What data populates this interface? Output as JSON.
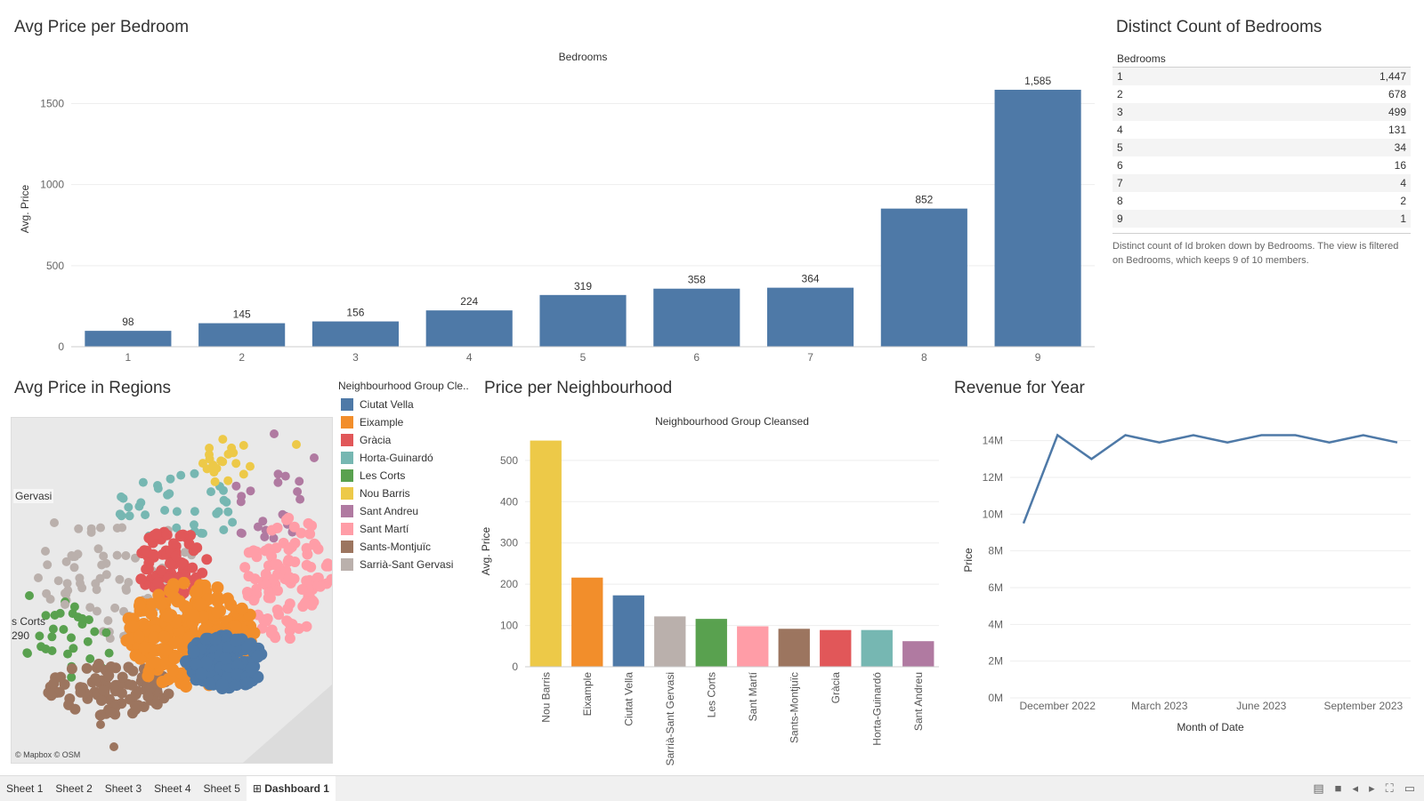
{
  "titles": {
    "bedroom_price": "Avg Price per Bedroom",
    "distinct_count": "Distinct Count of Bedrooms",
    "regions": "Avg Price in Regions",
    "neighbourhood": "Price per Neighbourhood",
    "revenue": "Revenue for Year"
  },
  "chart_data": [
    {
      "type": "bar",
      "title": "Avg Price per Bedroom",
      "header": "Bedrooms",
      "ylabel": "Avg. Price",
      "categories": [
        "1",
        "2",
        "3",
        "4",
        "5",
        "6",
        "7",
        "8",
        "9"
      ],
      "values": [
        98,
        145,
        156,
        224,
        319,
        358,
        364,
        852,
        1585
      ],
      "value_labels": [
        "98",
        "145",
        "156",
        "224",
        "319",
        "358",
        "364",
        "852",
        "1,585"
      ],
      "ylim": [
        0,
        1700
      ],
      "yticks": [
        0,
        500,
        1000,
        1500
      ],
      "color": "#4e79a7"
    },
    {
      "type": "table",
      "title": "Distinct Count of Bedrooms",
      "header": "Bedrooms",
      "rows": [
        {
          "bedrooms": "1",
          "count": "1,447"
        },
        {
          "bedrooms": "2",
          "count": "678"
        },
        {
          "bedrooms": "3",
          "count": "499"
        },
        {
          "bedrooms": "4",
          "count": "131"
        },
        {
          "bedrooms": "5",
          "count": "34"
        },
        {
          "bedrooms": "6",
          "count": "16"
        },
        {
          "bedrooms": "7",
          "count": "4"
        },
        {
          "bedrooms": "8",
          "count": "2"
        },
        {
          "bedrooms": "9",
          "count": "1"
        }
      ],
      "note": "Distinct count of Id broken down by Bedrooms. The view is filtered on Bedrooms, which keeps 9 of 10 members."
    },
    {
      "type": "bar",
      "title": "Price per Neighbourhood",
      "header": "Neighbourhood Group Cleansed",
      "ylabel": "Avg. Price",
      "categories": [
        "Nou Barris",
        "Eixample",
        "Ciutat Vella",
        "Sarrià-Sant Gervasi",
        "Les Corts",
        "Sant Martí",
        "Sants-Montjuïc",
        "Gràcia",
        "Horta-Guinardó",
        "Sant Andreu"
      ],
      "values": [
        548,
        216,
        173,
        122,
        116,
        98,
        92,
        89,
        89,
        62
      ],
      "colors": [
        "#edc948",
        "#f28e2b",
        "#4e79a7",
        "#bab0ac",
        "#59a14f",
        "#ff9da7",
        "#9c755f",
        "#e15759",
        "#76b7b2",
        "#b07aa1"
      ],
      "ylim": [
        0,
        560
      ],
      "yticks": [
        0,
        100,
        200,
        300,
        400,
        500
      ]
    },
    {
      "type": "line",
      "title": "Revenue for Year",
      "xlabel": "Month of Date",
      "ylabel": "Price",
      "x": [
        "2022-11",
        "2022-12",
        "2023-01",
        "2023-02",
        "2023-03",
        "2023-04",
        "2023-05",
        "2023-06",
        "2023-07",
        "2023-08",
        "2023-09",
        "2023-10"
      ],
      "values": [
        9.5,
        14.3,
        13.0,
        14.3,
        13.9,
        14.3,
        13.9,
        14.3,
        14.3,
        13.9,
        14.3,
        13.9
      ],
      "value_unit": "M",
      "xtick_labels": [
        {
          "label": "December 2022",
          "index": 1
        },
        {
          "label": "March 2023",
          "index": 4
        },
        {
          "label": "June 2023",
          "index": 7
        },
        {
          "label": "September 2023",
          "index": 10
        }
      ],
      "yticks": [
        "0M",
        "2M",
        "4M",
        "6M",
        "8M",
        "10M",
        "12M",
        "14M"
      ],
      "ylim": [
        0,
        15
      ],
      "color": "#4e79a7"
    }
  ],
  "map": {
    "attribution": "© Mapbox © OSM",
    "labels": [
      "Gervasi",
      "s Corts",
      "290"
    ]
  },
  "legend": {
    "title": "Neighbourhood Group Cle..",
    "items": [
      {
        "name": "Ciutat Vella",
        "color": "#4e79a7"
      },
      {
        "name": "Eixample",
        "color": "#f28e2b"
      },
      {
        "name": "Gràcia",
        "color": "#e15759"
      },
      {
        "name": "Horta-Guinardó",
        "color": "#76b7b2"
      },
      {
        "name": "Les Corts",
        "color": "#59a14f"
      },
      {
        "name": "Nou Barris",
        "color": "#edc948"
      },
      {
        "name": "Sant Andreu",
        "color": "#b07aa1"
      },
      {
        "name": "Sant Martí",
        "color": "#ff9da7"
      },
      {
        "name": "Sants-Montjuïc",
        "color": "#9c755f"
      },
      {
        "name": "Sarrià-Sant Gervasi",
        "color": "#bab0ac"
      }
    ]
  },
  "tabs": [
    {
      "label": "Sheet 1",
      "active": false
    },
    {
      "label": "Sheet 2",
      "active": false
    },
    {
      "label": "Sheet 3",
      "active": false
    },
    {
      "label": "Sheet 4",
      "active": false
    },
    {
      "label": "Sheet 5",
      "active": false
    },
    {
      "label": "Dashboard 1",
      "active": true
    }
  ],
  "tab_icons": [
    "grid-icon"
  ],
  "controls": [
    "layout-icon",
    "stop-icon",
    "prev-icon",
    "next-icon",
    "fullscreen-icon",
    "present-icon"
  ]
}
